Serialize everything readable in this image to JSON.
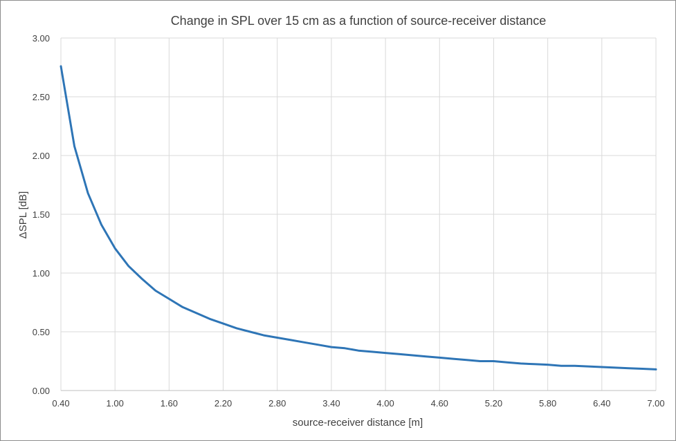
{
  "chart_data": {
    "type": "line",
    "title": "Change in SPL over 15 cm as a function of source-receiver  distance",
    "xlabel": "source-receiver distance [m]",
    "ylabel": "ΔSPL [dB]",
    "xlim": [
      0.4,
      7.0
    ],
    "ylim": [
      0,
      3.0
    ],
    "x_ticks": [
      "0.40",
      "1.00",
      "1.60",
      "2.20",
      "2.80",
      "3.40",
      "4.00",
      "4.60",
      "5.20",
      "5.80",
      "6.40",
      "7.00"
    ],
    "y_ticks": [
      "0.00",
      "0.50",
      "1.00",
      "1.50",
      "2.00",
      "2.50",
      "3.00"
    ],
    "grid": "vertical",
    "legend": "none",
    "series": [
      {
        "color": "#2e75b6",
        "x": [
          0.4,
          0.55,
          0.7,
          0.85,
          1.0,
          1.15,
          1.3,
          1.45,
          1.6,
          1.75,
          1.9,
          2.05,
          2.2,
          2.35,
          2.5,
          2.65,
          2.8,
          2.95,
          3.1,
          3.25,
          3.4,
          3.55,
          3.7,
          3.85,
          4.0,
          4.15,
          4.3,
          4.45,
          4.6,
          4.75,
          4.9,
          5.05,
          5.2,
          5.35,
          5.5,
          5.65,
          5.8,
          5.95,
          6.1,
          6.25,
          6.4,
          6.55,
          6.7,
          6.85,
          7.0
        ],
        "values": [
          2.76,
          2.08,
          1.68,
          1.41,
          1.21,
          1.06,
          0.95,
          0.85,
          0.78,
          0.71,
          0.66,
          0.61,
          0.57,
          0.53,
          0.5,
          0.47,
          0.45,
          0.43,
          0.41,
          0.39,
          0.37,
          0.36,
          0.34,
          0.33,
          0.32,
          0.31,
          0.3,
          0.29,
          0.28,
          0.27,
          0.26,
          0.25,
          0.25,
          0.24,
          0.23,
          0.225,
          0.22,
          0.21,
          0.21,
          0.205,
          0.2,
          0.195,
          0.19,
          0.185,
          0.18
        ]
      }
    ]
  }
}
